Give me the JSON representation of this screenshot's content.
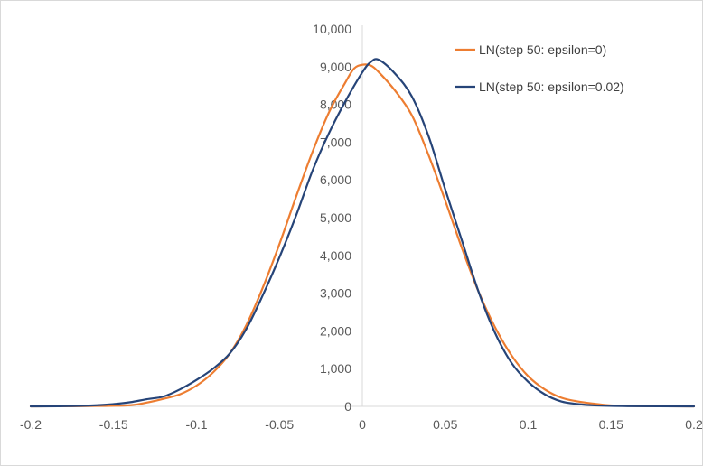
{
  "chart_data": {
    "type": "line",
    "title": "",
    "xlabel": "",
    "ylabel": "",
    "xlim": [
      -0.2,
      0.2
    ],
    "ylim": [
      0,
      10000
    ],
    "grid": false,
    "legend_position": "top-right",
    "x_ticks": [
      -0.2,
      -0.15,
      -0.1,
      -0.05,
      0,
      0.05,
      0.1,
      0.15,
      0.2
    ],
    "x_tick_labels": [
      "-0.2",
      "-0.15",
      "-0.1",
      "-0.05",
      "0",
      "0.05",
      "0.1",
      "0.15",
      "0.2"
    ],
    "y_ticks": [
      0,
      1000,
      2000,
      3000,
      4000,
      5000,
      6000,
      7000,
      8000,
      9000,
      10000
    ],
    "y_tick_labels": [
      "0",
      "1,000",
      "2,000",
      "3,000",
      "4,000",
      "5,000",
      "6,000",
      "7,000",
      "8,000",
      "9,000",
      "10,000"
    ],
    "series": [
      {
        "name": "LN(step 50: epsilon=0)",
        "color": "#ED7D31",
        "points": [
          [
            -0.2,
            0
          ],
          [
            -0.18,
            3
          ],
          [
            -0.16,
            10
          ],
          [
            -0.14,
            30
          ],
          [
            -0.13,
            100
          ],
          [
            -0.12,
            200
          ],
          [
            -0.11,
            320
          ],
          [
            -0.1,
            550
          ],
          [
            -0.09,
            900
          ],
          [
            -0.08,
            1400
          ],
          [
            -0.07,
            2150
          ],
          [
            -0.06,
            3150
          ],
          [
            -0.05,
            4300
          ],
          [
            -0.04,
            5550
          ],
          [
            -0.03,
            6750
          ],
          [
            -0.02,
            7800
          ],
          [
            -0.01,
            8600
          ],
          [
            -0.005,
            8950
          ],
          [
            0,
            9050
          ],
          [
            0.005,
            9030
          ],
          [
            0.01,
            8850
          ],
          [
            0.02,
            8350
          ],
          [
            0.03,
            7700
          ],
          [
            0.04,
            6650
          ],
          [
            0.05,
            5450
          ],
          [
            0.06,
            4200
          ],
          [
            0.07,
            3050
          ],
          [
            0.08,
            2100
          ],
          [
            0.09,
            1350
          ],
          [
            0.1,
            800
          ],
          [
            0.11,
            450
          ],
          [
            0.12,
            230
          ],
          [
            0.13,
            130
          ],
          [
            0.14,
            70
          ],
          [
            0.15,
            25
          ],
          [
            0.17,
            6
          ],
          [
            0.2,
            0
          ]
        ]
      },
      {
        "name": "LN(step 50: epsilon=0.02)",
        "color": "#264478",
        "points": [
          [
            -0.2,
            0
          ],
          [
            -0.18,
            5
          ],
          [
            -0.16,
            30
          ],
          [
            -0.15,
            60
          ],
          [
            -0.14,
            110
          ],
          [
            -0.13,
            190
          ],
          [
            -0.12,
            260
          ],
          [
            -0.11,
            450
          ],
          [
            -0.1,
            700
          ],
          [
            -0.09,
            1000
          ],
          [
            -0.08,
            1400
          ],
          [
            -0.07,
            2050
          ],
          [
            -0.06,
            2950
          ],
          [
            -0.05,
            3950
          ],
          [
            -0.04,
            5050
          ],
          [
            -0.03,
            6250
          ],
          [
            -0.02,
            7250
          ],
          [
            -0.01,
            8100
          ],
          [
            0,
            8850
          ],
          [
            0.005,
            9120
          ],
          [
            0.01,
            9180
          ],
          [
            0.02,
            8800
          ],
          [
            0.03,
            8200
          ],
          [
            0.04,
            7150
          ],
          [
            0.05,
            5750
          ],
          [
            0.06,
            4400
          ],
          [
            0.07,
            3050
          ],
          [
            0.08,
            1950
          ],
          [
            0.09,
            1150
          ],
          [
            0.1,
            650
          ],
          [
            0.11,
            320
          ],
          [
            0.12,
            130
          ],
          [
            0.13,
            60
          ],
          [
            0.14,
            25
          ],
          [
            0.16,
            6
          ],
          [
            0.2,
            0
          ]
        ]
      }
    ]
  }
}
